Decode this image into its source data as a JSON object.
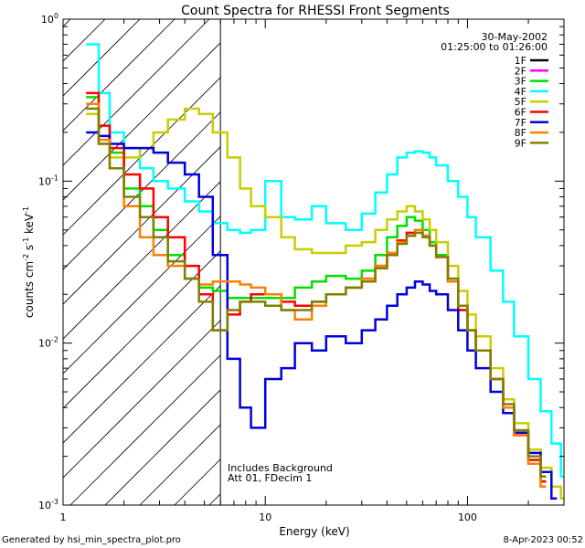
{
  "chart_data": {
    "type": "line",
    "title": "Count Spectra for RHESSI Front Segments",
    "xlabel": "Energy (keV)",
    "ylabel": {
      "main": "counts cm",
      "exp1": "-2",
      "mid": " s",
      "exp2": "-1",
      "mid2": " keV",
      "exp3": "-1"
    },
    "x_scale": "log",
    "y_scale": "log",
    "xlim": [
      1,
      300
    ],
    "ylim": [
      0.001,
      1
    ],
    "x_ticks": [
      {
        "value": 1,
        "label": "1"
      },
      {
        "value": 10,
        "label": "10"
      },
      {
        "value": 100,
        "label": "100"
      }
    ],
    "y_ticks": [
      {
        "value": 1,
        "base": "10",
        "exp": "0"
      },
      {
        "value": 0.1,
        "base": "10",
        "exp": "-1"
      },
      {
        "value": 0.01,
        "base": "10",
        "exp": "-2"
      },
      {
        "value": 0.001,
        "base": "10",
        "exp": "-3"
      }
    ],
    "date": "30-May-2002",
    "time_range": "01:25:00 to 01:26:00",
    "annotations": [
      "Includes Background",
      "Att 01, FDecim 1"
    ],
    "excluded_region_keV": [
      1,
      6
    ],
    "series": [
      {
        "name": "1F",
        "color": "#000000",
        "x": [],
        "y": []
      },
      {
        "name": "2F",
        "color": "#ff00ff",
        "x": [],
        "y": []
      },
      {
        "name": "3F",
        "color": "#00e000",
        "x": [
          1.3,
          1.5,
          1.7,
          2.0,
          2.4,
          2.8,
          3.3,
          4.0,
          4.7,
          5.5,
          6.5,
          7.5,
          8.5,
          10,
          12,
          14,
          17,
          20,
          25,
          30,
          35,
          40,
          45,
          50,
          55,
          60,
          65,
          70,
          80,
          90,
          100,
          110,
          130,
          150,
          170,
          200,
          230
        ],
        "y": [
          0.33,
          0.22,
          0.15,
          0.09,
          0.07,
          0.05,
          0.035,
          0.025,
          0.022,
          0.021,
          0.019,
          0.019,
          0.019,
          0.019,
          0.019,
          0.022,
          0.024,
          0.026,
          0.025,
          0.028,
          0.035,
          0.045,
          0.053,
          0.06,
          0.057,
          0.05,
          0.042,
          0.035,
          0.025,
          0.016,
          0.012,
          0.009,
          0.006,
          0.004,
          0.0028,
          0.0018,
          0.0014
        ]
      },
      {
        "name": "4F",
        "color": "#00ffff",
        "x": [
          1.3,
          1.5,
          1.7,
          2.0,
          2.4,
          2.8,
          3.3,
          4.0,
          4.7,
          5.5,
          6.5,
          7.5,
          8.5,
          10,
          12,
          14,
          17,
          20,
          25,
          30,
          35,
          40,
          45,
          50,
          55,
          60,
          65,
          70,
          80,
          90,
          100,
          110,
          130,
          150,
          170,
          200,
          230,
          260,
          290
        ],
        "y": [
          0.7,
          0.35,
          0.2,
          0.16,
          0.12,
          0.1,
          0.09,
          0.075,
          0.065,
          0.055,
          0.05,
          0.048,
          0.05,
          0.1,
          0.06,
          0.058,
          0.07,
          0.055,
          0.05,
          0.063,
          0.085,
          0.11,
          0.14,
          0.15,
          0.153,
          0.15,
          0.14,
          0.125,
          0.1,
          0.08,
          0.06,
          0.045,
          0.028,
          0.018,
          0.011,
          0.006,
          0.0038,
          0.0024,
          0.0015
        ]
      },
      {
        "name": "5F",
        "color": "#cccc00",
        "x": [
          1.3,
          1.5,
          1.7,
          2.0,
          2.4,
          2.8,
          3.3,
          4.0,
          4.7,
          5.5,
          6.5,
          7.5,
          8.5,
          10,
          12,
          14,
          17,
          20,
          25,
          30,
          35,
          40,
          45,
          50,
          55,
          60,
          65,
          70,
          80,
          90,
          100,
          110,
          130,
          150,
          170,
          200,
          230,
          260,
          290
        ],
        "y": [
          0.26,
          0.17,
          0.14,
          0.14,
          0.16,
          0.2,
          0.24,
          0.28,
          0.26,
          0.2,
          0.14,
          0.09,
          0.07,
          0.06,
          0.045,
          0.038,
          0.036,
          0.036,
          0.04,
          0.042,
          0.05,
          0.058,
          0.065,
          0.07,
          0.065,
          0.058,
          0.05,
          0.042,
          0.03,
          0.021,
          0.015,
          0.011,
          0.007,
          0.0045,
          0.0032,
          0.0022,
          0.0017,
          0.0013,
          0.0011
        ]
      },
      {
        "name": "6F",
        "color": "#ff0000",
        "x": [
          1.3,
          1.5,
          1.7,
          2.0,
          2.4,
          2.8,
          3.3,
          4.0,
          4.7,
          5.5,
          6.5,
          7.5,
          8.5,
          10,
          12,
          14,
          17,
          20,
          25,
          30,
          35,
          40,
          45,
          50,
          55,
          60,
          65,
          70,
          80,
          90,
          100,
          110,
          130,
          150,
          170,
          200,
          230
        ],
        "y": [
          0.35,
          0.22,
          0.16,
          0.11,
          0.09,
          0.06,
          0.045,
          0.03,
          0.02,
          0.012,
          0.015,
          0.018,
          0.02,
          0.02,
          0.018,
          0.017,
          0.018,
          0.02,
          0.022,
          0.025,
          0.03,
          0.036,
          0.043,
          0.048,
          0.05,
          0.046,
          0.04,
          0.034,
          0.024,
          0.016,
          0.012,
          0.009,
          0.006,
          0.004,
          0.0027,
          0.0019,
          0.0014
        ]
      },
      {
        "name": "7F",
        "color": "#0000dd",
        "x": [
          1.3,
          1.5,
          1.7,
          2.0,
          2.4,
          2.8,
          3.3,
          4.0,
          4.7,
          5.5,
          6.5,
          7.5,
          8.5,
          10,
          12,
          14,
          17,
          20,
          25,
          30,
          35,
          40,
          45,
          50,
          55,
          60,
          65,
          70,
          80,
          90,
          100,
          110,
          130,
          150,
          170,
          200,
          230,
          260
        ],
        "y": [
          0.2,
          0.19,
          0.17,
          0.16,
          0.16,
          0.15,
          0.13,
          0.11,
          0.08,
          0.035,
          0.008,
          0.004,
          0.003,
          0.006,
          0.007,
          0.01,
          0.009,
          0.011,
          0.01,
          0.012,
          0.014,
          0.017,
          0.02,
          0.022,
          0.024,
          0.023,
          0.021,
          0.02,
          0.016,
          0.012,
          0.009,
          0.007,
          0.005,
          0.0037,
          0.0028,
          0.0021,
          0.0016,
          0.0011
        ]
      },
      {
        "name": "8F",
        "color": "#ff8000",
        "x": [
          1.3,
          1.5,
          1.7,
          2.0,
          2.4,
          2.8,
          3.3,
          4.0,
          4.7,
          5.5,
          6.5,
          7.5,
          8.5,
          10,
          12,
          14,
          17,
          20,
          25,
          30,
          35,
          40,
          45,
          50,
          55,
          60,
          65,
          70,
          80,
          90,
          100,
          110,
          130,
          150,
          170,
          200,
          230
        ],
        "y": [
          0.3,
          0.18,
          0.12,
          0.07,
          0.045,
          0.035,
          0.03,
          0.025,
          0.023,
          0.024,
          0.024,
          0.023,
          0.022,
          0.02,
          0.016,
          0.014,
          0.017,
          0.02,
          0.022,
          0.025,
          0.03,
          0.036,
          0.042,
          0.046,
          0.05,
          0.046,
          0.04,
          0.034,
          0.024,
          0.017,
          0.012,
          0.009,
          0.006,
          0.004,
          0.0027,
          0.0018,
          0.0013
        ]
      },
      {
        "name": "9F",
        "color": "#808000",
        "x": [
          1.3,
          1.5,
          1.7,
          2.0,
          2.4,
          2.8,
          3.3,
          4.0,
          4.7,
          5.5,
          6.5,
          7.5,
          8.5,
          10,
          12,
          14,
          17,
          20,
          25,
          30,
          35,
          40,
          45,
          50,
          55,
          60,
          65,
          70,
          80,
          90,
          100,
          110,
          130,
          150,
          170,
          200,
          230
        ],
        "y": [
          0.28,
          0.17,
          0.12,
          0.08,
          0.06,
          0.045,
          0.032,
          0.025,
          0.018,
          0.012,
          0.016,
          0.018,
          0.018,
          0.017,
          0.016,
          0.016,
          0.018,
          0.02,
          0.022,
          0.024,
          0.029,
          0.035,
          0.041,
          0.046,
          0.048,
          0.045,
          0.04,
          0.034,
          0.025,
          0.017,
          0.012,
          0.009,
          0.006,
          0.0042,
          0.0029,
          0.002,
          0.0015
        ]
      }
    ]
  },
  "footer": {
    "generated_by": "Generated by  hsi_min_spectra_plot.pro",
    "date_stamp": "8-Apr-2023 00:52"
  }
}
